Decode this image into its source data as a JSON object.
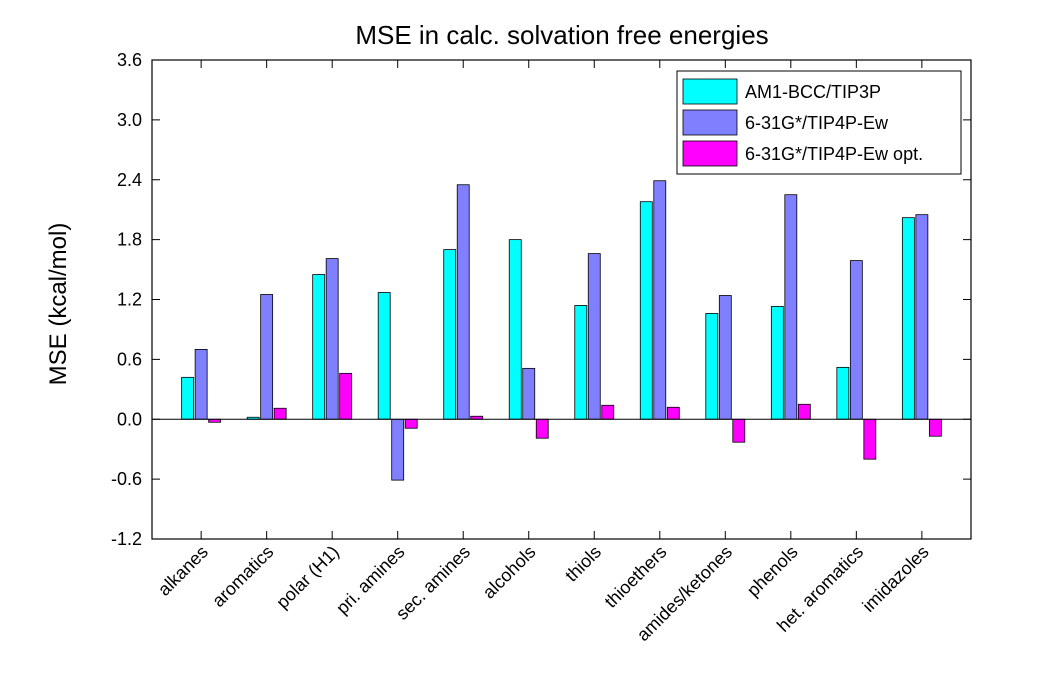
{
  "chart_data": {
    "type": "bar",
    "title": "MSE in calc. solvation free energies",
    "xlabel": "",
    "ylabel": "MSE (kcal/mol)",
    "ylim": [
      -1.2,
      3.6
    ],
    "yticks": [
      "-1.2",
      "-0.6",
      "0.0",
      "0.6",
      "1.2",
      "1.8",
      "2.4",
      "3.0",
      "3.6"
    ],
    "grid": false,
    "legend_position": "top-right",
    "categories": [
      "alkanes",
      "aromatics",
      "polar (H1)",
      "pri. amines",
      "sec. amines",
      "alcohols",
      "thiols",
      "thioethers",
      "amides/ketones",
      "phenols",
      "het. aromatics",
      "imidazoles"
    ],
    "series": [
      {
        "name": "AM1-BCC/TIP3P",
        "color": "#00ffff",
        "values": [
          0.42,
          0.02,
          1.45,
          1.27,
          1.7,
          1.8,
          1.14,
          2.18,
          1.06,
          1.13,
          0.52,
          2.02
        ]
      },
      {
        "name": "6-31G*/TIP4P-Ew",
        "color": "#8080ff",
        "values": [
          0.7,
          1.25,
          1.61,
          -0.61,
          2.35,
          0.51,
          1.66,
          2.39,
          1.24,
          2.25,
          1.59,
          2.05
        ]
      },
      {
        "name": "6-31G*/TIP4P-Ew opt.",
        "color": "#ff00ff",
        "values": [
          -0.03,
          0.11,
          0.46,
          -0.09,
          0.03,
          -0.19,
          0.14,
          0.12,
          -0.23,
          0.15,
          -0.4,
          -0.17
        ]
      }
    ]
  }
}
